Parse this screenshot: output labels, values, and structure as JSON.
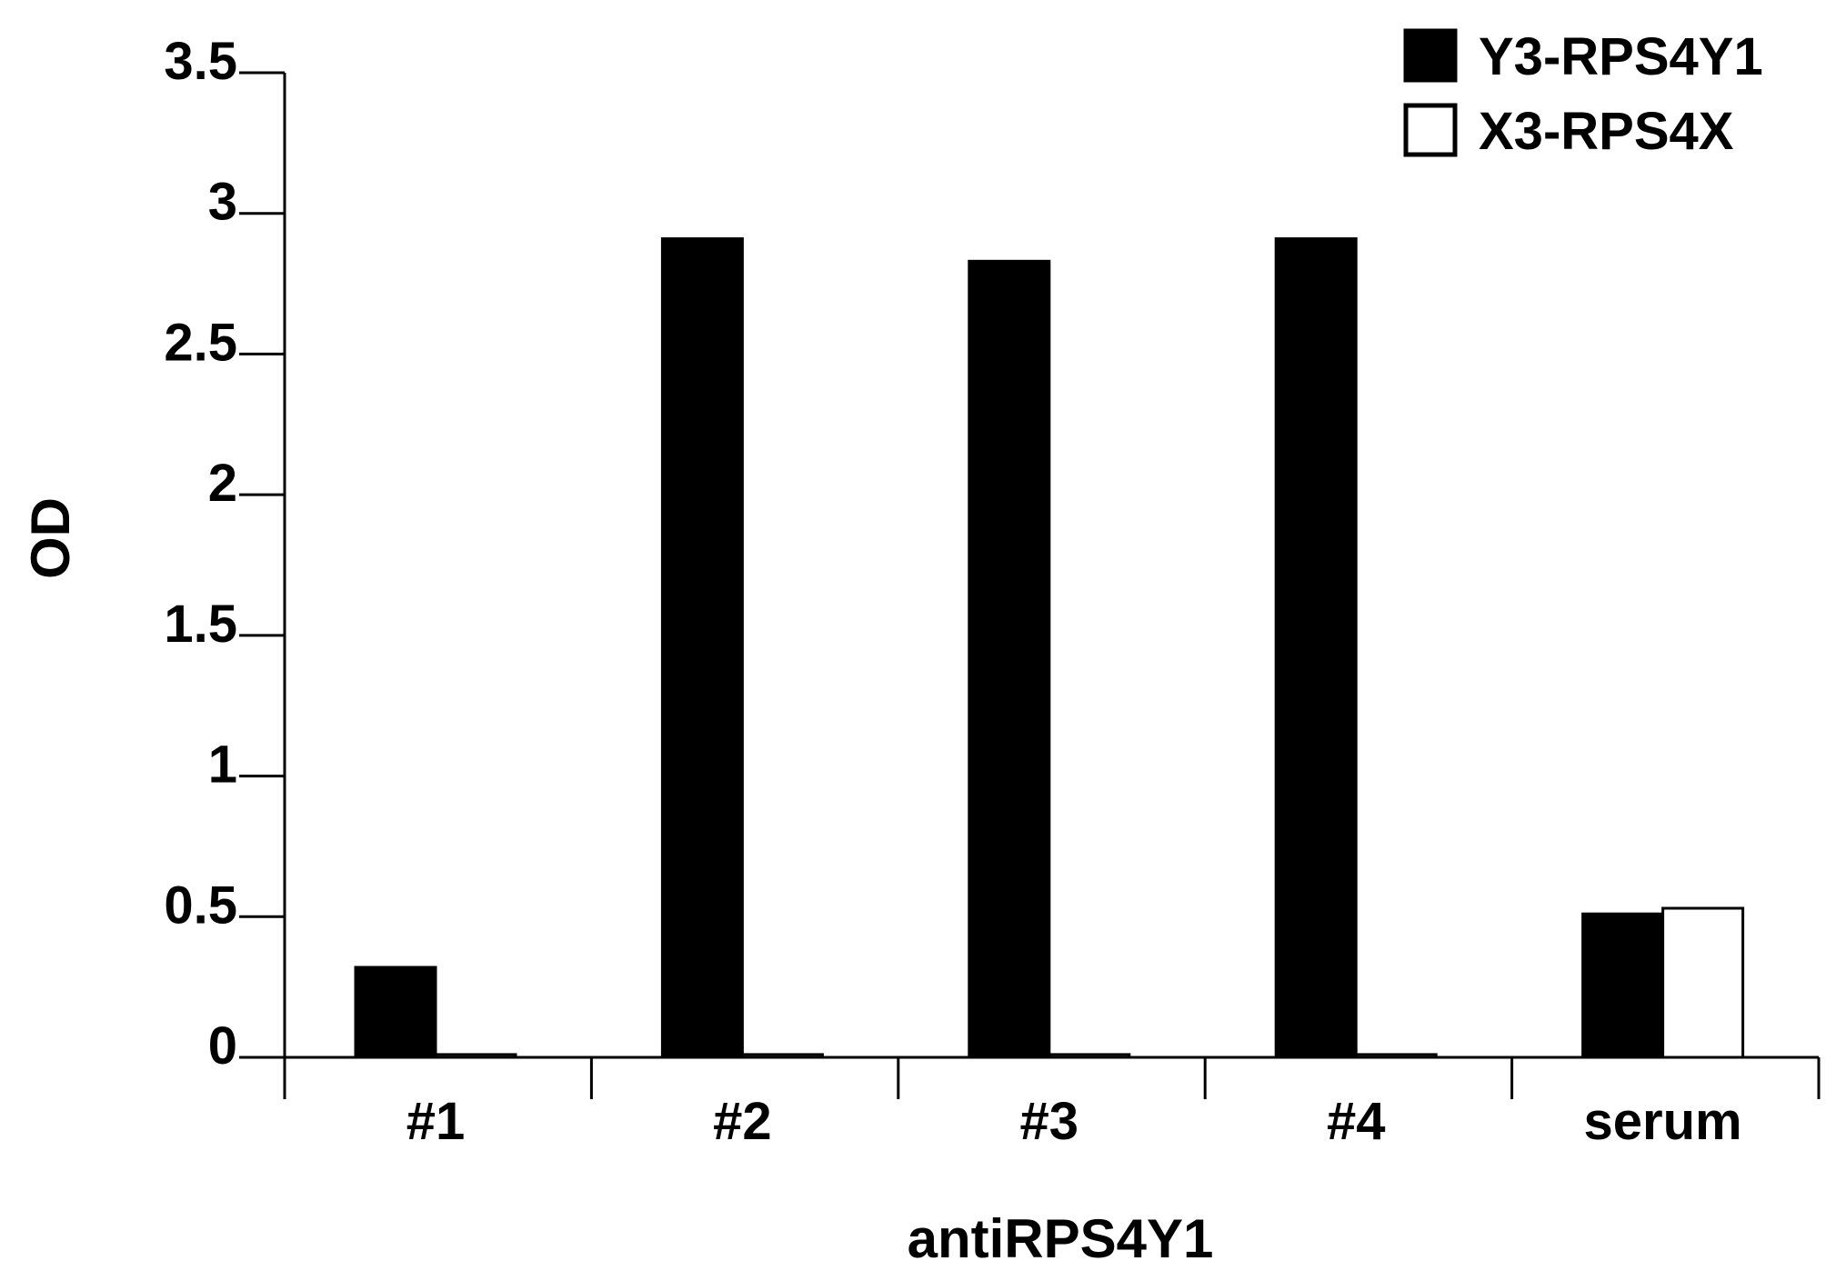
{
  "chart_data": {
    "type": "bar",
    "title": "",
    "xlabel": "antiRPS4Y1",
    "ylabel": "OD",
    "categories": [
      "#1",
      "#2",
      "#3",
      "#4",
      "serum"
    ],
    "series": [
      {
        "name": "Y3-RPS4Y1",
        "color": "#000000",
        "fill": "#000000",
        "values": [
          0.32,
          2.91,
          2.83,
          2.91,
          0.51
        ]
      },
      {
        "name": "X3-RPS4X",
        "color": "#000000",
        "fill": "#ffffff",
        "values": [
          0.01,
          0.01,
          0.01,
          0.01,
          0.53
        ]
      }
    ],
    "ylim": [
      0,
      3.5
    ],
    "yticks": [
      0,
      0.5,
      1,
      1.5,
      2,
      2.5,
      3,
      3.5
    ],
    "ytick_labels": [
      "0",
      "0.5",
      "1",
      "1.5",
      "2",
      "2.5",
      "3",
      "3.5"
    ],
    "grid": false,
    "legend_position": "top-right"
  }
}
